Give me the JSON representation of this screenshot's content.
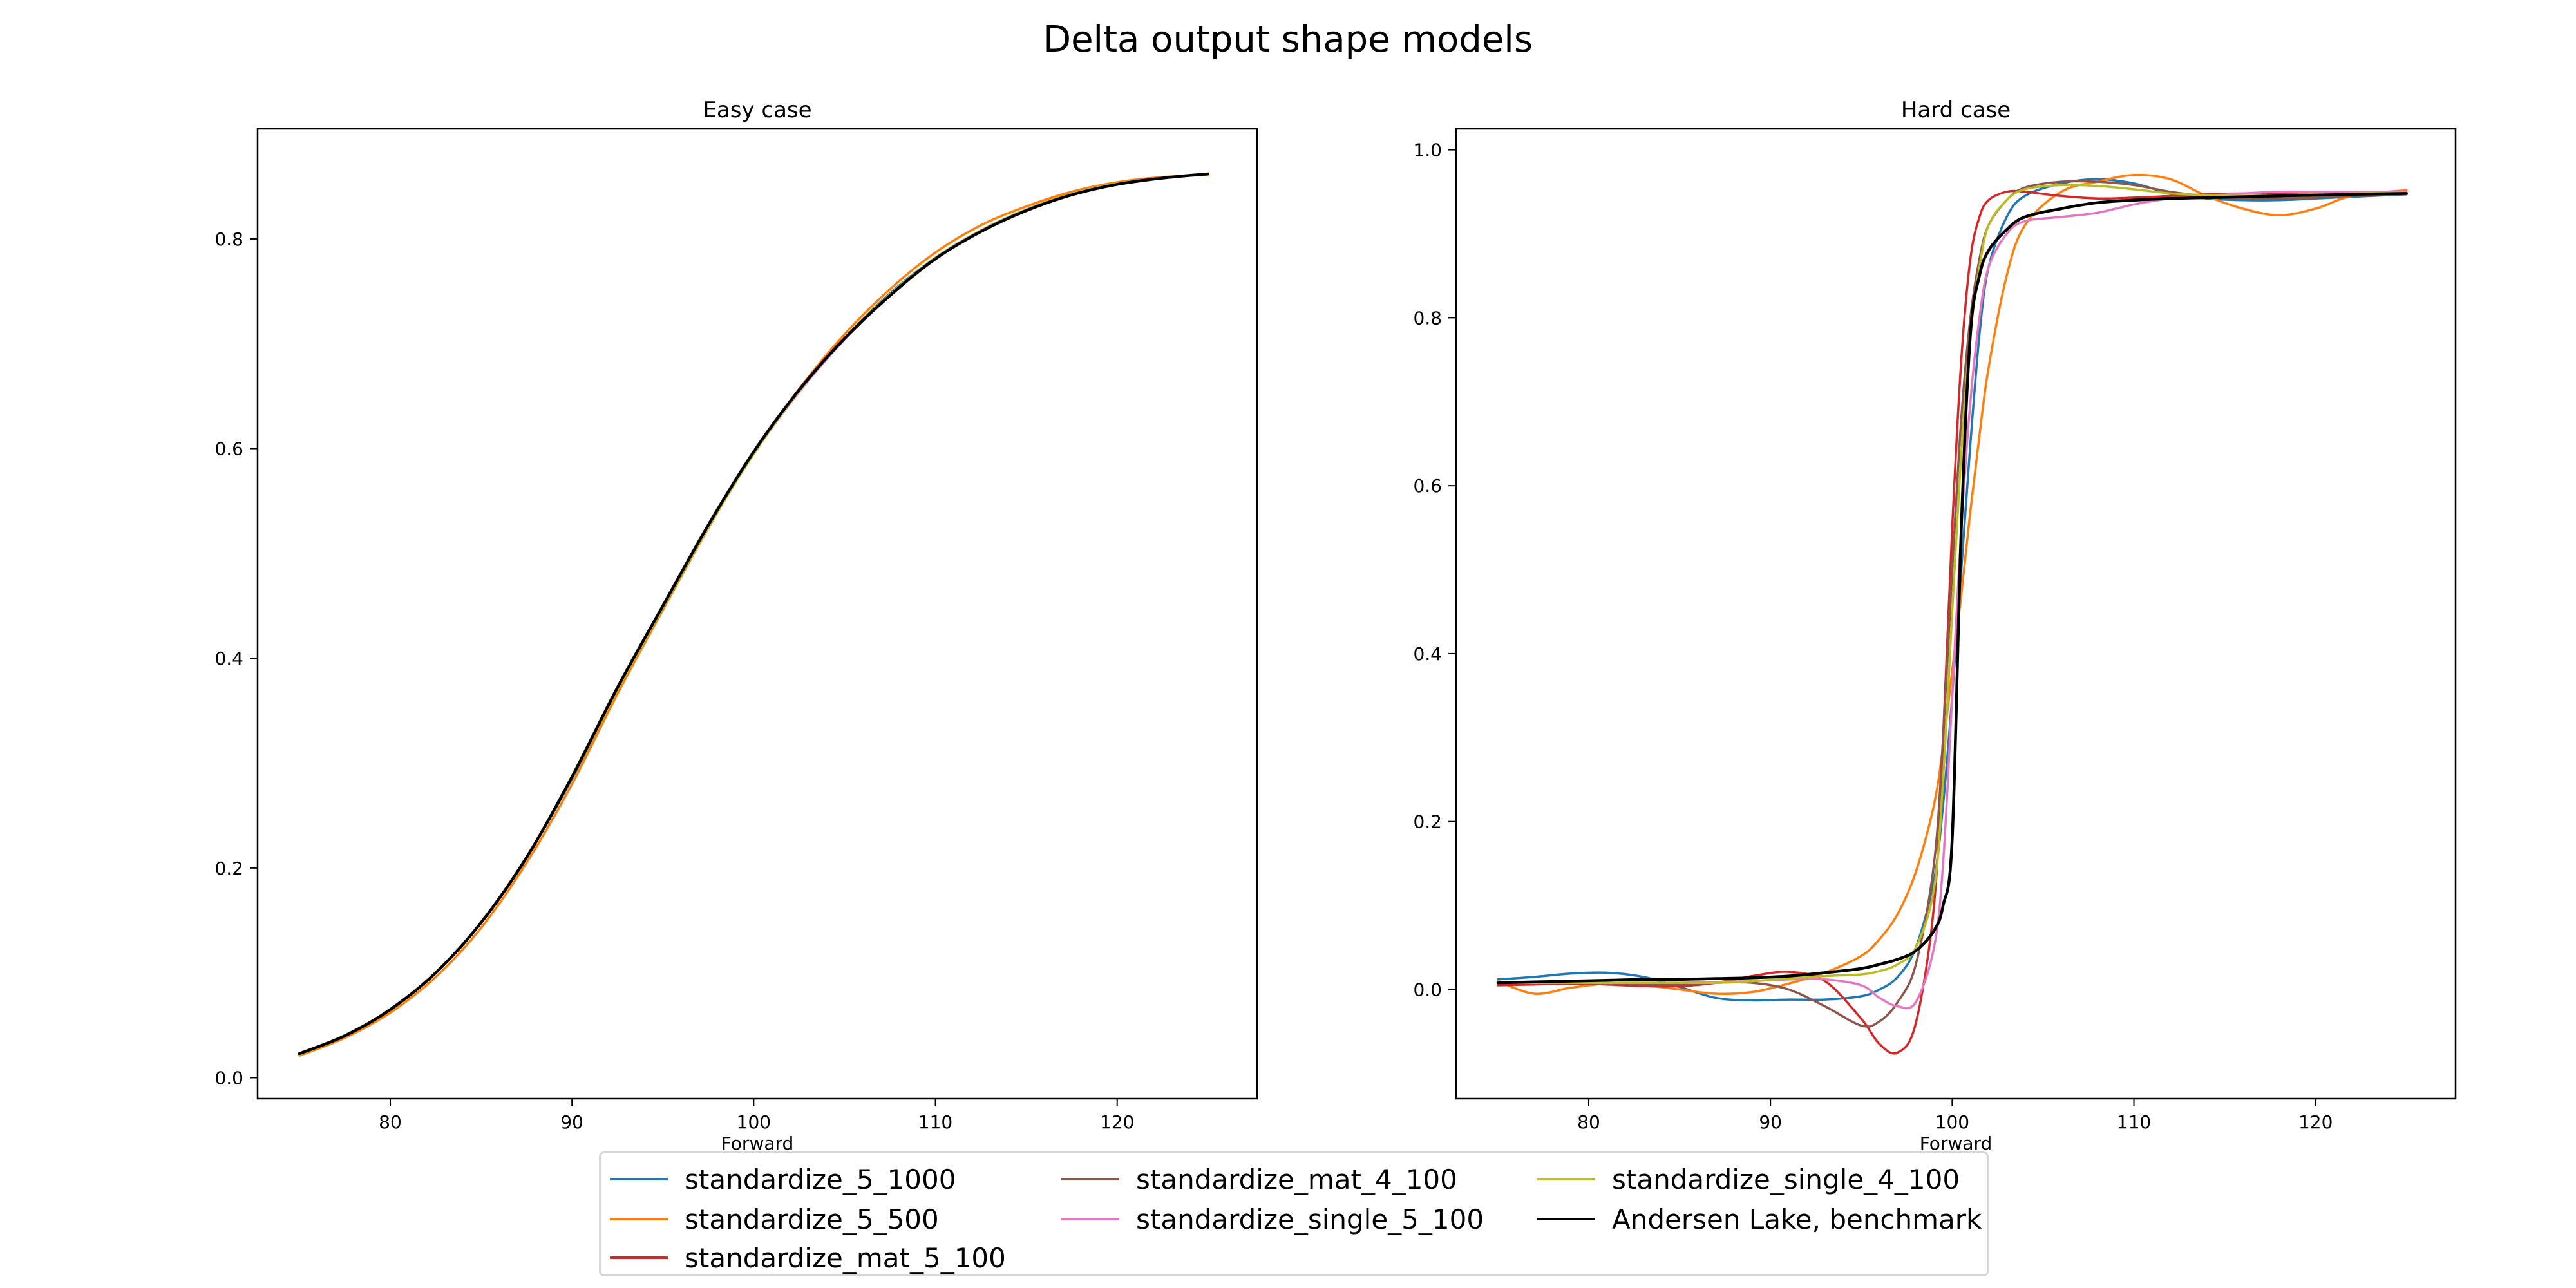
{
  "figure": {
    "title": "Delta output shape models"
  },
  "colors": {
    "standardize_5_1000": "#1f77b4",
    "standardize_5_500": "#ff7f0e",
    "standardize_mat_5_100": "#d62728",
    "standardize_mat_4_100": "#8c564b",
    "standardize_single_5_100": "#e377c2",
    "standardize_single_4_100": "#bcbd22",
    "Andersen Lake, benchmark": "#000000"
  },
  "legend": {
    "entries": [
      "standardize_5_1000",
      "standardize_5_500",
      "standardize_mat_5_100",
      "standardize_mat_4_100",
      "standardize_single_5_100",
      "standardize_single_4_100",
      "Andersen Lake, benchmark"
    ]
  },
  "chart_data": [
    {
      "type": "line",
      "title": "Easy case",
      "xlabel": "Forward",
      "ylabel": "",
      "xlim": [
        72.7,
        127.7
      ],
      "ylim": [
        -0.02,
        0.905
      ],
      "xticks": [
        80,
        90,
        100,
        110,
        120
      ],
      "yticks": [
        0.0,
        0.2,
        0.4,
        0.6,
        0.8
      ],
      "xtick_labels": [
        "80",
        "90",
        "100",
        "110",
        "120"
      ],
      "ytick_labels": [
        "0.0",
        "0.2",
        "0.4",
        "0.6",
        "0.8"
      ],
      "grid": false,
      "x": [
        75,
        77.5,
        80,
        82.5,
        85,
        87.5,
        90,
        92.5,
        95,
        97.5,
        100,
        102.5,
        105,
        107.5,
        110,
        112.5,
        115,
        117.5,
        120,
        122.5,
        125
      ],
      "series": [
        {
          "name": "standardize_5_1000",
          "values": [
            0.023,
            0.04,
            0.065,
            0.1,
            0.148,
            0.21,
            0.285,
            0.37,
            0.448,
            0.525,
            0.595,
            0.655,
            0.705,
            0.748,
            0.782,
            0.808,
            0.828,
            0.843,
            0.853,
            0.858,
            0.862
          ]
        },
        {
          "name": "standardize_5_500",
          "values": [
            0.021,
            0.038,
            0.062,
            0.096,
            0.143,
            0.205,
            0.28,
            0.366,
            0.446,
            0.524,
            0.596,
            0.657,
            0.709,
            0.752,
            0.787,
            0.813,
            0.831,
            0.845,
            0.854,
            0.859,
            0.861
          ]
        },
        {
          "name": "standardize_mat_5_100",
          "values": [
            0.022,
            0.04,
            0.065,
            0.1,
            0.148,
            0.21,
            0.286,
            0.37,
            0.448,
            0.525,
            0.595,
            0.655,
            0.705,
            0.747,
            0.782,
            0.808,
            0.828,
            0.843,
            0.853,
            0.858,
            0.862
          ]
        },
        {
          "name": "standardize_mat_4_100",
          "values": [
            0.022,
            0.04,
            0.065,
            0.1,
            0.148,
            0.21,
            0.286,
            0.37,
            0.448,
            0.525,
            0.595,
            0.655,
            0.705,
            0.747,
            0.782,
            0.808,
            0.828,
            0.843,
            0.853,
            0.858,
            0.862
          ]
        },
        {
          "name": "standardize_single_5_100",
          "values": [
            0.022,
            0.04,
            0.065,
            0.1,
            0.148,
            0.21,
            0.286,
            0.37,
            0.448,
            0.525,
            0.595,
            0.654,
            0.704,
            0.746,
            0.781,
            0.807,
            0.827,
            0.842,
            0.852,
            0.858,
            0.862
          ]
        },
        {
          "name": "standardize_single_4_100",
          "values": [
            0.022,
            0.04,
            0.065,
            0.1,
            0.148,
            0.21,
            0.286,
            0.37,
            0.448,
            0.525,
            0.595,
            0.655,
            0.705,
            0.747,
            0.782,
            0.808,
            0.828,
            0.843,
            0.853,
            0.858,
            0.862
          ]
        },
        {
          "name": "Andersen Lake, benchmark",
          "values": [
            0.023,
            0.04,
            0.065,
            0.1,
            0.148,
            0.21,
            0.287,
            0.372,
            0.45,
            0.527,
            0.597,
            0.656,
            0.705,
            0.746,
            0.781,
            0.807,
            0.827,
            0.842,
            0.852,
            0.858,
            0.862
          ]
        }
      ]
    },
    {
      "type": "line",
      "title": "Hard case",
      "xlabel": "Forward",
      "ylabel": "",
      "xlim": [
        72.7,
        127.7
      ],
      "ylim": [
        -0.13,
        1.025
      ],
      "xticks": [
        80,
        90,
        100,
        110,
        120
      ],
      "yticks": [
        0.0,
        0.2,
        0.4,
        0.6,
        0.8,
        1.0
      ],
      "xtick_labels": [
        "80",
        "90",
        "100",
        "110",
        "120"
      ],
      "ytick_labels": [
        "0.0",
        "0.2",
        "0.4",
        "0.6",
        "0.8",
        "1.0"
      ],
      "grid": false,
      "x": [
        75,
        77,
        79,
        81,
        83,
        85,
        87,
        89,
        91,
        93,
        95,
        96,
        97,
        98,
        99,
        99.5,
        100,
        100.5,
        101,
        101.5,
        102,
        103,
        104,
        106,
        108,
        110,
        112,
        114,
        116,
        118,
        120,
        122,
        125
      ],
      "series": [
        {
          "name": "standardize_5_1000",
          "values": [
            0.012,
            0.015,
            0.019,
            0.02,
            0.015,
            0.003,
            -0.01,
            -0.013,
            -0.012,
            -0.012,
            -0.008,
            0.0,
            0.015,
            0.05,
            0.13,
            0.22,
            0.35,
            0.5,
            0.65,
            0.78,
            0.86,
            0.92,
            0.945,
            0.96,
            0.965,
            0.96,
            0.948,
            0.942,
            0.94,
            0.94,
            0.942,
            0.944,
            0.947
          ]
        },
        {
          "name": "standardize_5_500",
          "values": [
            0.01,
            -0.005,
            0.002,
            0.007,
            0.005,
            0.0,
            -0.005,
            -0.003,
            0.007,
            0.02,
            0.04,
            0.06,
            0.09,
            0.14,
            0.22,
            0.29,
            0.38,
            0.47,
            0.57,
            0.66,
            0.74,
            0.85,
            0.91,
            0.95,
            0.962,
            0.97,
            0.965,
            0.945,
            0.93,
            0.922,
            0.93,
            0.945,
            0.952
          ]
        },
        {
          "name": "standardize_mat_5_100",
          "values": [
            0.005,
            0.006,
            0.007,
            0.006,
            0.004,
            0.004,
            0.008,
            0.016,
            0.021,
            0.01,
            -0.035,
            -0.065,
            -0.075,
            -0.04,
            0.1,
            0.3,
            0.55,
            0.75,
            0.87,
            0.92,
            0.94,
            0.95,
            0.95,
            0.945,
            0.942,
            0.943,
            0.945,
            0.947,
            0.948,
            0.948,
            0.948,
            0.947,
            0.947
          ]
        },
        {
          "name": "standardize_mat_4_100",
          "values": [
            0.008,
            0.009,
            0.008,
            0.007,
            0.006,
            0.006,
            0.008,
            0.008,
            0.0,
            -0.02,
            -0.043,
            -0.038,
            -0.015,
            0.03,
            0.15,
            0.3,
            0.5,
            0.68,
            0.8,
            0.87,
            0.91,
            0.94,
            0.955,
            0.962,
            0.962,
            0.958,
            0.95,
            0.945,
            0.942,
            0.942,
            0.943,
            0.945,
            0.947
          ]
        },
        {
          "name": "standardize_single_5_100",
          "values": [
            0.008,
            0.008,
            0.008,
            0.008,
            0.008,
            0.008,
            0.009,
            0.01,
            0.012,
            0.012,
            0.005,
            -0.01,
            -0.02,
            -0.015,
            0.05,
            0.15,
            0.35,
            0.55,
            0.7,
            0.8,
            0.86,
            0.9,
            0.915,
            0.92,
            0.925,
            0.935,
            0.942,
            0.945,
            0.948,
            0.95,
            0.95,
            0.95,
            0.95
          ]
        },
        {
          "name": "standardize_single_4_100",
          "values": [
            0.008,
            0.008,
            0.008,
            0.008,
            0.008,
            0.008,
            0.008,
            0.01,
            0.013,
            0.016,
            0.018,
            0.022,
            0.03,
            0.05,
            0.12,
            0.25,
            0.45,
            0.64,
            0.78,
            0.86,
            0.91,
            0.94,
            0.953,
            0.958,
            0.957,
            0.953,
            0.948,
            0.946,
            0.945,
            0.946,
            0.947,
            0.948,
            0.949
          ]
        },
        {
          "name": "Andersen Lake, benchmark",
          "values": [
            0.008,
            0.009,
            0.01,
            0.011,
            0.012,
            0.012,
            0.013,
            0.014,
            0.016,
            0.02,
            0.025,
            0.03,
            0.036,
            0.046,
            0.07,
            0.1,
            0.18,
            0.55,
            0.78,
            0.85,
            0.88,
            0.905,
            0.92,
            0.93,
            0.937,
            0.94,
            0.942,
            0.943,
            0.944,
            0.945,
            0.946,
            0.947,
            0.948
          ]
        }
      ]
    }
  ]
}
